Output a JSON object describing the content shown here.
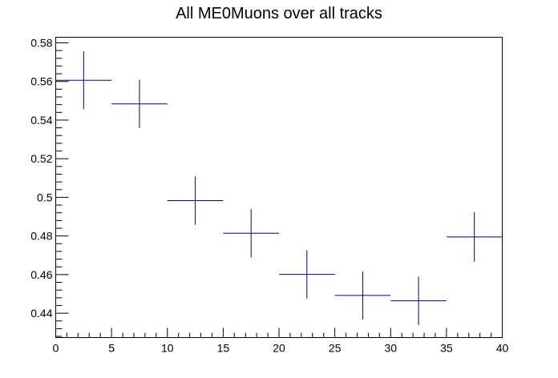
{
  "chart_data": {
    "type": "scatter",
    "title": "All ME0Muons over all tracks",
    "xlabel": "",
    "ylabel": "",
    "xlim": [
      0,
      40
    ],
    "ylim": [
      0.4274,
      0.5829
    ],
    "x_ticks": [
      0,
      5,
      10,
      15,
      20,
      25,
      30,
      35,
      40
    ],
    "x_tick_labels": [
      "0",
      "5",
      "10",
      "15",
      "20",
      "25",
      "30",
      "35",
      "40"
    ],
    "y_ticks": [
      0.44,
      0.46,
      0.48,
      0.5,
      0.52,
      0.54,
      0.56,
      0.58
    ],
    "y_tick_labels": [
      "0.44",
      "0.46",
      "0.48",
      "0.5",
      "0.52",
      "0.54",
      "0.56",
      "0.58"
    ],
    "grid": false,
    "color": "#000080",
    "series": [
      {
        "x": [
          2.5,
          7.5,
          12.5,
          17.5,
          22.5,
          27.5,
          32.5,
          37.5
        ],
        "x_err": [
          2.5,
          2.5,
          2.5,
          2.5,
          2.5,
          2.5,
          2.5,
          2.5
        ],
        "y": [
          0.5606,
          0.5484,
          0.4983,
          0.4814,
          0.4601,
          0.4492,
          0.4464,
          0.4795
        ],
        "y_err": [
          0.015,
          0.0125,
          0.0125,
          0.0125,
          0.0125,
          0.0125,
          0.0125,
          0.0128
        ]
      }
    ]
  }
}
